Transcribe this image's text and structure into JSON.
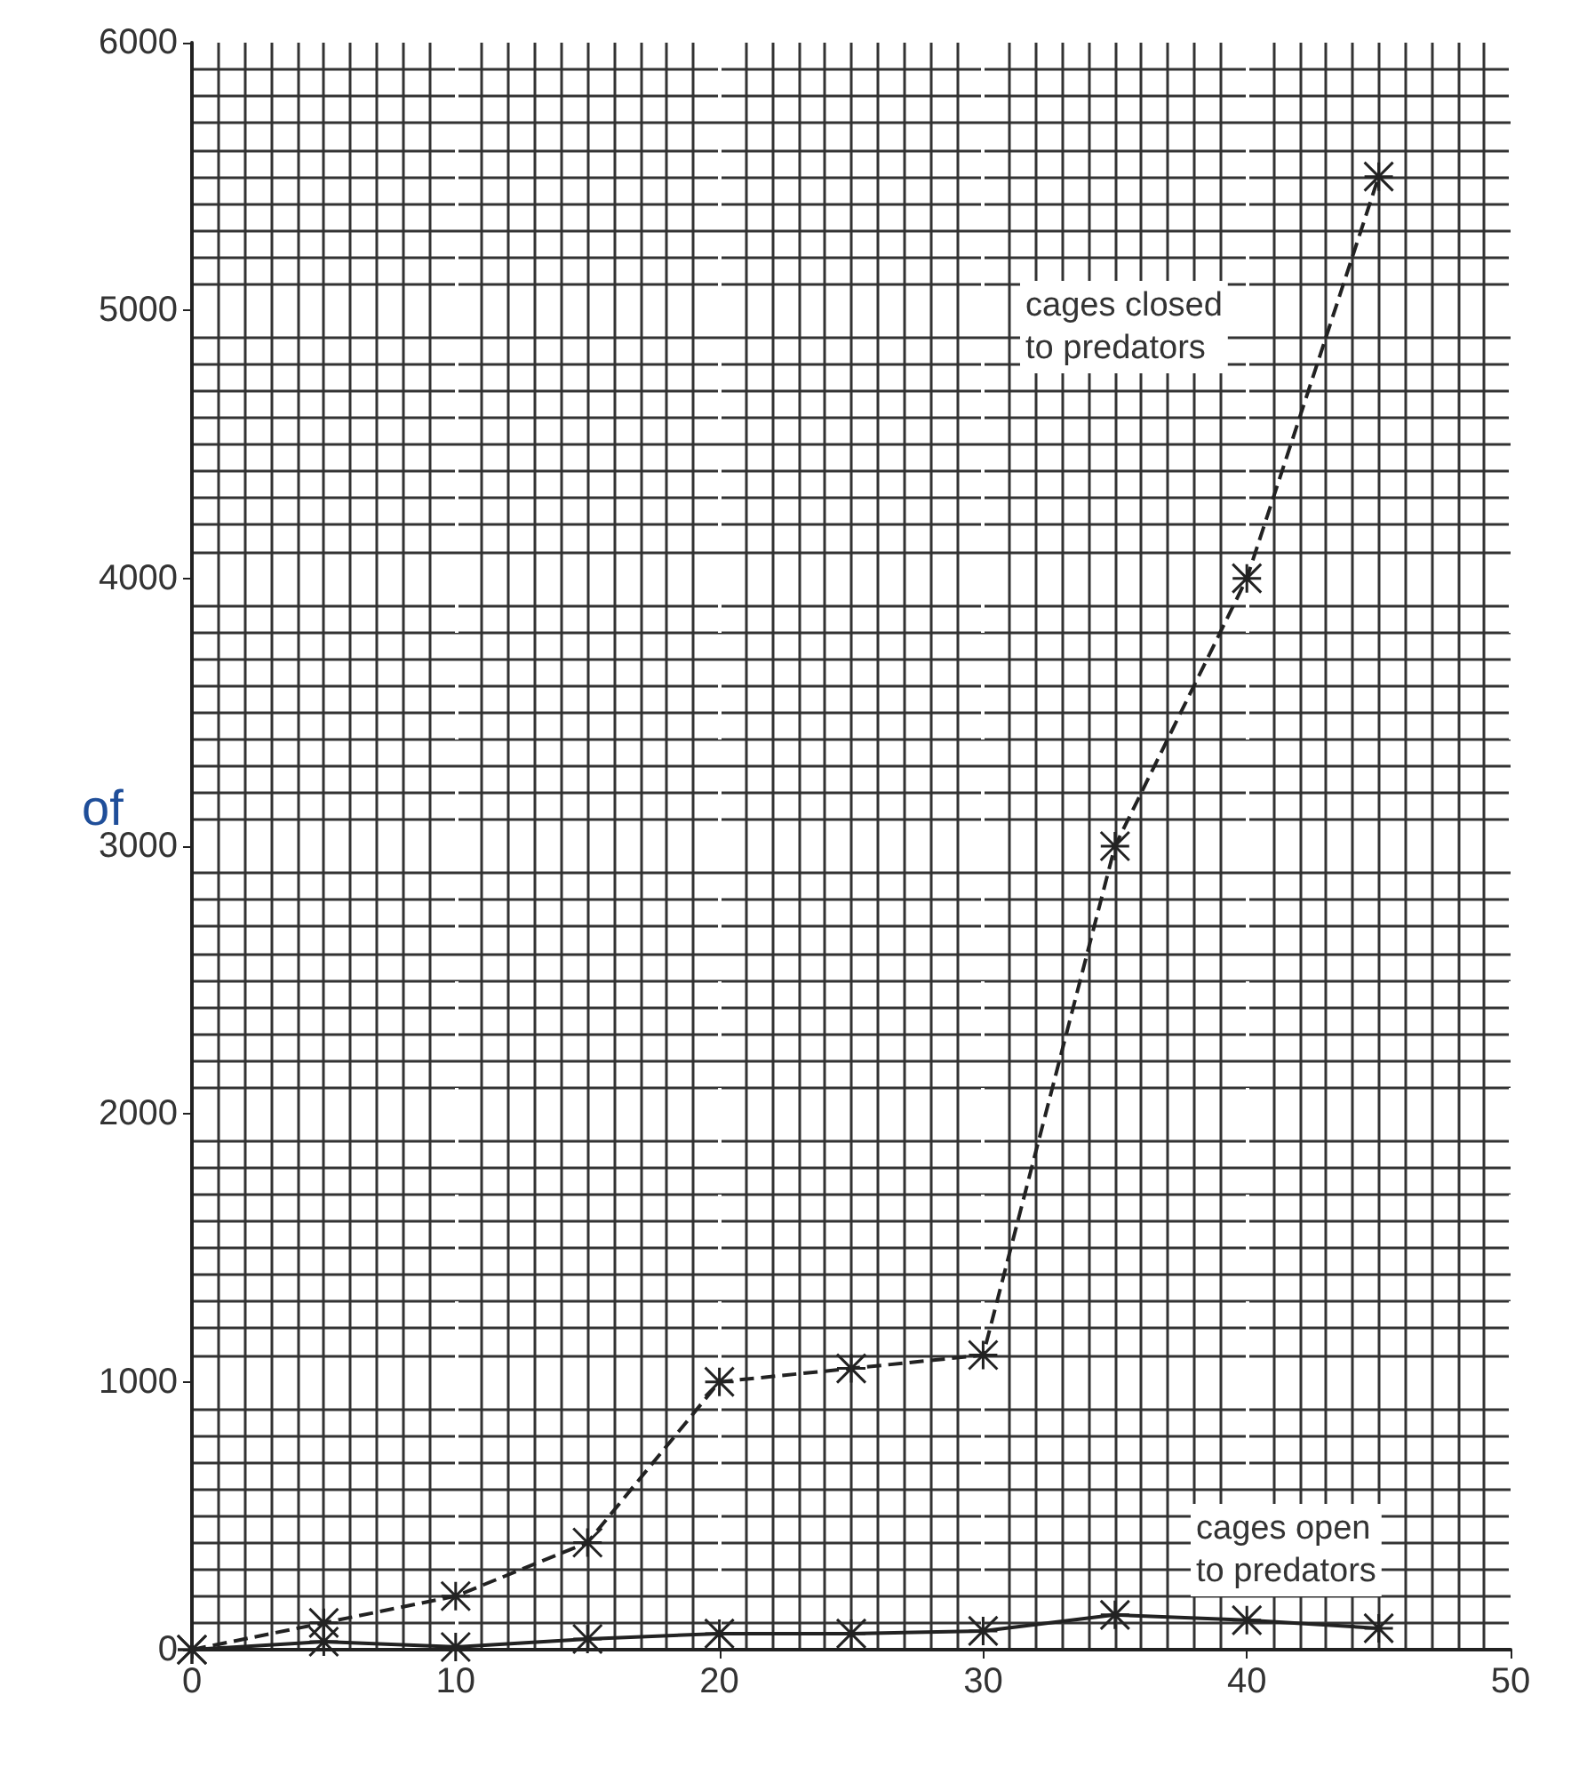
{
  "chart_data": {
    "type": "line",
    "x": [
      0,
      5,
      10,
      15,
      20,
      25,
      30,
      35,
      40,
      45
    ],
    "series": [
      {
        "color": "#222222",
        "line_style": "dashed",
        "values": [
          0,
          100,
          200,
          400,
          1000,
          1050,
          1100,
          3000,
          4000,
          5500
        ]
      },
      {
        "color": "#222222",
        "line_style": "solid",
        "values": [
          0,
          30,
          10,
          40,
          60,
          60,
          70,
          130,
          110,
          80
        ]
      }
    ],
    "xlim": [
      0,
      50
    ],
    "xticks": [
      0,
      10,
      20,
      30,
      40,
      50
    ],
    "ylim": [
      0,
      6000
    ],
    "yticks": [
      0,
      1000,
      2000,
      3000,
      4000,
      5000,
      6000
    ],
    "grid": true,
    "marker": "cross",
    "annotations": [
      "cages closed\nto predators",
      "cages open\nto predators",
      "of"
    ]
  }
}
